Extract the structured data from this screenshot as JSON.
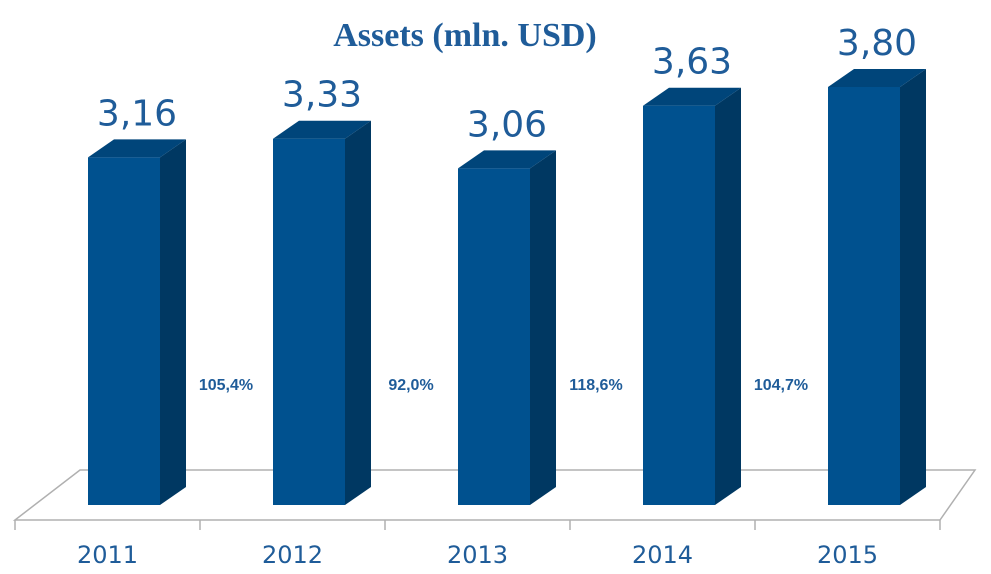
{
  "chart_data": {
    "type": "bar3d",
    "title": "Assets (mln. USD)",
    "categories": [
      "2011",
      "2012",
      "2013",
      "2014",
      "2015"
    ],
    "values": [
      3.16,
      3.33,
      3.06,
      3.63,
      3.8
    ],
    "value_labels": [
      "3,16",
      "3,33",
      "3,06",
      "3,63",
      "3,80"
    ],
    "color": "#00518f",
    "annotations": [
      "105,4%",
      "92,0%",
      "118,6%",
      "104,7%"
    ]
  }
}
